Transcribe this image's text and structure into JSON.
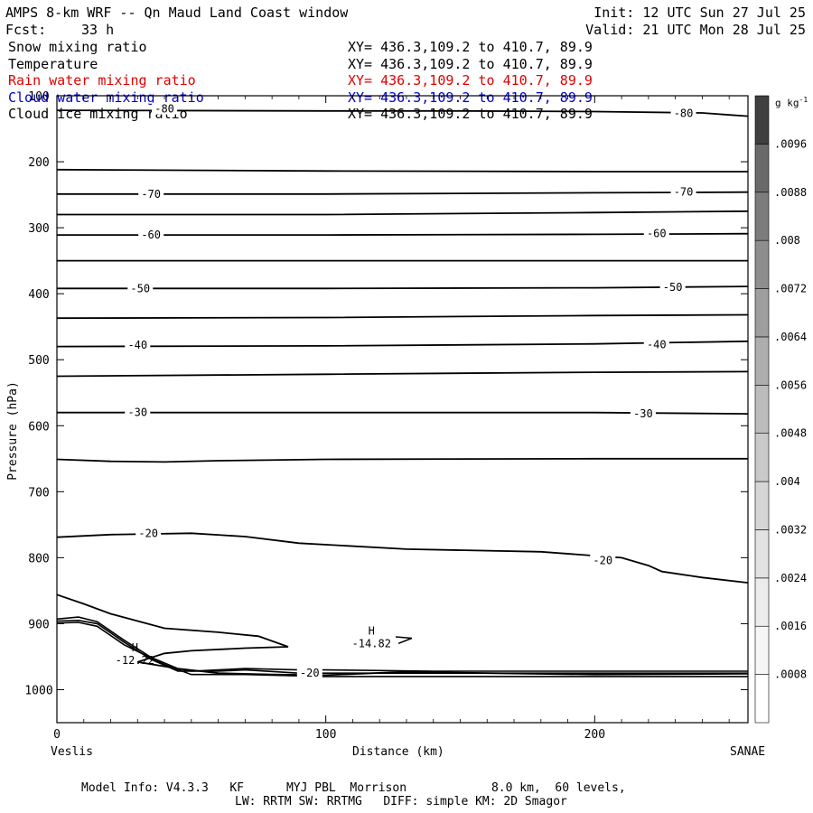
{
  "header": {
    "title": "AMPS 8-km WRF -- Qn Maud Land Coast window",
    "init": "Init: 12 UTC Sun 27 Jul 25",
    "fcst_label": "Fcst:",
    "fcst_value": "33 h",
    "valid": "Valid: 21 UTC Mon 28 Jul 25"
  },
  "fields": [
    {
      "name": "Snow mixing ratio",
      "xy": "XY= 436.3,109.2 to 410.7, 89.9",
      "color": "#000000"
    },
    {
      "name": "Temperature",
      "xy": "XY= 436.3,109.2 to 410.7, 89.9",
      "color": "#000000"
    },
    {
      "name": "Rain water mixing ratio",
      "xy": "XY= 436.3,109.2 to 410.7, 89.9",
      "color": "#e00000"
    },
    {
      "name": "Cloud water mixing ratio",
      "xy": "XY= 436.3,109.2 to 410.7, 89.9",
      "color": "#0000cc"
    },
    {
      "name": "Cloud ice mixing ratio",
      "xy": "XY= 436.3,109.2 to 410.7, 89.9",
      "color": "#000000"
    }
  ],
  "axes": {
    "ylabel": "Pressure (hPa)",
    "xlabel": "Distance (km)",
    "left_endpoint": "Veslis",
    "right_endpoint": "SANAE"
  },
  "colorbar": {
    "unit": "g kg",
    "unit_sup": "-1",
    "levels": [
      ".0008",
      ".0016",
      ".0024",
      ".0032",
      ".004",
      ".0048",
      ".0056",
      ".0064",
      ".0072",
      ".008",
      ".0088",
      ".0096"
    ],
    "colors": [
      "#ffffff",
      "#f6f6f6",
      "#ececec",
      "#e2e2e2",
      "#d6d6d6",
      "#c9c9c9",
      "#bcbcbc",
      "#aeaeae",
      "#9e9e9e",
      "#8e8e8e",
      "#7c7c7c",
      "#6a6a6a",
      "#404040"
    ]
  },
  "footer": {
    "line1": "Model Info: V4.3.3   KF      MYJ PBL  Morrison            8.0 km,  60 levels,",
    "line2": "LW: RRTM SW: RRTMG   DIFF: simple KM: 2D Smagor"
  },
  "chart_data": {
    "type": "line",
    "x_range": [
      0,
      257
    ],
    "y_range": [
      1050,
      100
    ],
    "x_ticks": [
      0,
      100,
      200
    ],
    "y_ticks": [
      100,
      200,
      300,
      400,
      500,
      600,
      700,
      800,
      900,
      1000
    ],
    "x_tick_labels": [
      "0",
      "100",
      "200"
    ],
    "y_tick_labels": [
      "100",
      "200",
      "300",
      "400",
      "500",
      "600",
      "700",
      "800",
      "900",
      "1000"
    ],
    "temperature_contours": [
      {
        "level": -80,
        "label": "-80",
        "points": [
          [
            0,
            122
          ],
          [
            100,
            123
          ],
          [
            150,
            123
          ],
          [
            200,
            124
          ],
          [
            240,
            126
          ],
          [
            250,
            129
          ],
          [
            257,
            131
          ]
        ],
        "labels_at": [
          [
            40,
            120
          ],
          [
            233,
            127
          ]
        ]
      },
      {
        "level": -75,
        "label": "",
        "points": [
          [
            0,
            212
          ],
          [
            100,
            214
          ],
          [
            200,
            215
          ],
          [
            257,
            215
          ]
        ],
        "labels_at": []
      },
      {
        "level": -70,
        "label": "-70",
        "points": [
          [
            0,
            249
          ],
          [
            100,
            249
          ],
          [
            200,
            247
          ],
          [
            257,
            246
          ]
        ],
        "labels_at": [
          [
            35,
            249
          ],
          [
            233,
            246
          ]
        ]
      },
      {
        "level": -65,
        "label": "",
        "points": [
          [
            0,
            280
          ],
          [
            100,
            280
          ],
          [
            200,
            277
          ],
          [
            257,
            275
          ]
        ],
        "labels_at": []
      },
      {
        "level": -60,
        "label": "-60",
        "points": [
          [
            0,
            311
          ],
          [
            100,
            311
          ],
          [
            200,
            310
          ],
          [
            257,
            309
          ]
        ],
        "labels_at": [
          [
            35,
            311
          ],
          [
            223,
            309
          ]
        ]
      },
      {
        "level": -55,
        "label": "",
        "points": [
          [
            0,
            350
          ],
          [
            100,
            350
          ],
          [
            200,
            350
          ],
          [
            257,
            350
          ]
        ],
        "labels_at": []
      },
      {
        "level": -50,
        "label": "-50",
        "points": [
          [
            0,
            392
          ],
          [
            100,
            392
          ],
          [
            200,
            391
          ],
          [
            257,
            389
          ]
        ],
        "labels_at": [
          [
            31,
            392
          ],
          [
            229,
            390
          ]
        ]
      },
      {
        "level": -45,
        "label": "",
        "points": [
          [
            0,
            437
          ],
          [
            100,
            436
          ],
          [
            200,
            433
          ],
          [
            257,
            432
          ]
        ],
        "labels_at": []
      },
      {
        "level": -40,
        "label": "-40",
        "points": [
          [
            0,
            480
          ],
          [
            100,
            479
          ],
          [
            200,
            476
          ],
          [
            257,
            472
          ]
        ],
        "labels_at": [
          [
            30,
            478
          ],
          [
            223,
            477
          ]
        ]
      },
      {
        "level": -35,
        "label": "",
        "points": [
          [
            0,
            525
          ],
          [
            100,
            522
          ],
          [
            200,
            519
          ],
          [
            257,
            518
          ]
        ],
        "labels_at": []
      },
      {
        "level": -30,
        "label": "-30",
        "points": [
          [
            0,
            580
          ],
          [
            100,
            580
          ],
          [
            200,
            580
          ],
          [
            257,
            582
          ]
        ],
        "labels_at": [
          [
            30,
            580
          ],
          [
            218,
            582
          ]
        ]
      },
      {
        "level": -25,
        "label": "",
        "points": [
          [
            0,
            651
          ],
          [
            20,
            654
          ],
          [
            40,
            655
          ],
          [
            60,
            653
          ],
          [
            100,
            651
          ],
          [
            200,
            650
          ],
          [
            257,
            650
          ]
        ],
        "labels_at": []
      },
      {
        "level": -20,
        "label": "-20",
        "points": [
          [
            0,
            769
          ],
          [
            20,
            765
          ],
          [
            50,
            763
          ],
          [
            70,
            768
          ],
          [
            90,
            778
          ],
          [
            130,
            787
          ],
          [
            180,
            791
          ],
          [
            210,
            800
          ],
          [
            220,
            812
          ],
          [
            225,
            821
          ],
          [
            240,
            830
          ],
          [
            257,
            838
          ]
        ],
        "labels_at": [
          [
            34,
            763
          ],
          [
            203,
            804
          ]
        ]
      },
      {
        "level": -20,
        "label": "-20",
        "points": [
          [
            0,
            856
          ],
          [
            10,
            870
          ],
          [
            20,
            885
          ],
          [
            40,
            907
          ],
          [
            60,
            913
          ],
          [
            75,
            919
          ],
          [
            86,
            935
          ],
          [
            70,
            937
          ],
          [
            50,
            941
          ],
          [
            40,
            945
          ],
          [
            30,
            958
          ],
          [
            45,
            968
          ],
          [
            60,
            975
          ],
          [
            80,
            977
          ],
          [
            100,
            978
          ],
          [
            130,
            973
          ],
          [
            160,
            975
          ],
          [
            200,
            977
          ],
          [
            257,
            976
          ]
        ],
        "labels_at": [
          [
            94,
            975
          ]
        ]
      }
    ],
    "terrain_lines": [
      {
        "points": [
          [
            0,
            893
          ],
          [
            8,
            890
          ],
          [
            15,
            897
          ],
          [
            25,
            925
          ],
          [
            35,
            951
          ],
          [
            45,
            968
          ],
          [
            50,
            972
          ],
          [
            60,
            970
          ],
          [
            70,
            968
          ],
          [
            90,
            970
          ],
          [
            100,
            970
          ],
          [
            140,
            972
          ],
          [
            200,
            972
          ],
          [
            257,
            972
          ]
        ]
      },
      {
        "points": [
          [
            0,
            896
          ],
          [
            8,
            895
          ],
          [
            15,
            900
          ],
          [
            25,
            928
          ],
          [
            35,
            954
          ],
          [
            45,
            972
          ],
          [
            60,
            972
          ],
          [
            70,
            970
          ],
          [
            90,
            975
          ],
          [
            257,
            975
          ]
        ]
      },
      {
        "points": [
          [
            0,
            899
          ],
          [
            8,
            898
          ],
          [
            15,
            904
          ],
          [
            25,
            932
          ],
          [
            40,
            962
          ],
          [
            50,
            977
          ],
          [
            70,
            977
          ],
          [
            100,
            980
          ],
          [
            257,
            980
          ]
        ]
      }
    ],
    "extrema": [
      {
        "letter": "H",
        "value": "-12.22",
        "x": 29,
        "p": 950
      },
      {
        "letter": "H",
        "value": "-14.82",
        "x": 117,
        "p": 925
      }
    ]
  }
}
